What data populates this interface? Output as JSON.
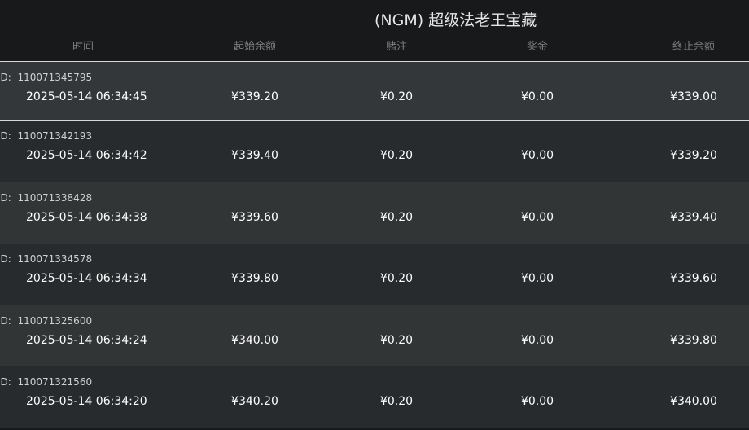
{
  "title": "(NGM) 超级法老王宝藏",
  "columns": [
    "时间",
    "起始余额",
    "赌注",
    "奖金",
    "终止余额"
  ],
  "id_prefix": "ID:",
  "rows": [
    {
      "id": "110071345795",
      "time": "2025-05-14 06:34:45",
      "start": "¥339.20",
      "bet": "¥0.20",
      "win": "¥0.00",
      "end": "¥339.00"
    },
    {
      "id": "110071342193",
      "time": "2025-05-14 06:34:42",
      "start": "¥339.40",
      "bet": "¥0.20",
      "win": "¥0.00",
      "end": "¥339.20"
    },
    {
      "id": "110071338428",
      "time": "2025-05-14 06:34:38",
      "start": "¥339.60",
      "bet": "¥0.20",
      "win": "¥0.00",
      "end": "¥339.40"
    },
    {
      "id": "110071334578",
      "time": "2025-05-14 06:34:34",
      "start": "¥339.80",
      "bet": "¥0.20",
      "win": "¥0.00",
      "end": "¥339.60"
    },
    {
      "id": "110071325600",
      "time": "2025-05-14 06:34:24",
      "start": "¥340.00",
      "bet": "¥0.20",
      "win": "¥0.00",
      "end": "¥339.80"
    },
    {
      "id": "110071321560",
      "time": "2025-05-14 06:34:20",
      "start": "¥340.20",
      "bet": "¥0.20",
      "win": "¥0.00",
      "end": "¥340.00"
    }
  ]
}
